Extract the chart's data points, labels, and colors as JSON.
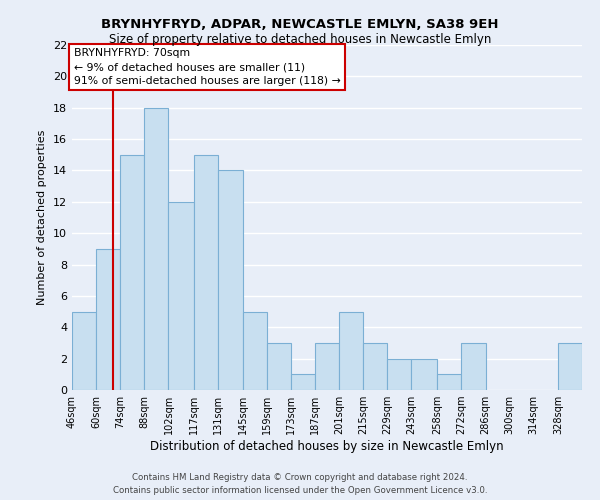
{
  "title": "BRYNHYFRYD, ADPAR, NEWCASTLE EMLYN, SA38 9EH",
  "subtitle": "Size of property relative to detached houses in Newcastle Emlyn",
  "xlabel": "Distribution of detached houses by size in Newcastle Emlyn",
  "ylabel": "Number of detached properties",
  "bin_edges": [
    46,
    60,
    74,
    88,
    102,
    117,
    131,
    145,
    159,
    173,
    187,
    201,
    215,
    229,
    243,
    258,
    272,
    286,
    300,
    314,
    328,
    342
  ],
  "bar_heights": [
    5,
    9,
    15,
    18,
    12,
    15,
    14,
    5,
    3,
    1,
    3,
    5,
    3,
    2,
    2,
    1,
    3,
    0,
    0,
    0,
    3
  ],
  "bar_color": "#c8dff0",
  "bar_edgecolor": "#7bafd4",
  "vline_x": 70,
  "vline_color": "#cc0000",
  "annotation_title": "BRYNHYFRYD: 70sqm",
  "annotation_line1": "← 9% of detached houses are smaller (11)",
  "annotation_line2": "91% of semi-detached houses are larger (118) →",
  "annotation_box_facecolor": "white",
  "annotation_box_edgecolor": "#cc0000",
  "ylim": [
    0,
    22
  ],
  "yticks": [
    0,
    2,
    4,
    6,
    8,
    10,
    12,
    14,
    16,
    18,
    20,
    22
  ],
  "xtick_labels": [
    "46sqm",
    "60sqm",
    "74sqm",
    "88sqm",
    "102sqm",
    "117sqm",
    "131sqm",
    "145sqm",
    "159sqm",
    "173sqm",
    "187sqm",
    "201sqm",
    "215sqm",
    "229sqm",
    "243sqm",
    "258sqm",
    "272sqm",
    "286sqm",
    "300sqm",
    "314sqm",
    "328sqm"
  ],
  "footer_line1": "Contains HM Land Registry data © Crown copyright and database right 2024.",
  "footer_line2": "Contains public sector information licensed under the Open Government Licence v3.0.",
  "background_color": "#e8eef8",
  "grid_color": "#ffffff",
  "grid_linewidth": 1.0
}
